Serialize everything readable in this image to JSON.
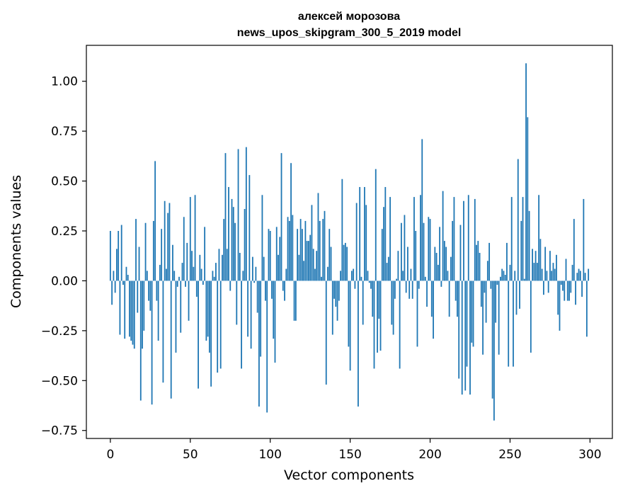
{
  "chart_data": {
    "type": "bar",
    "title": "алексей морозова",
    "subtitle": "news_upos_skipgram_300_5_2019 model",
    "xlabel": "Vector components",
    "ylabel": "Components values",
    "xlim": [
      -15,
      314
    ],
    "ylim": [
      -0.79,
      1.18
    ],
    "x_ticks": [
      0,
      50,
      100,
      150,
      200,
      250,
      300
    ],
    "y_ticks": [
      -0.75,
      -0.5,
      -0.25,
      0.0,
      0.25,
      0.5,
      0.75,
      1.0
    ],
    "y_tick_labels": [
      "−0.75",
      "−0.50",
      "−0.25",
      "0.00",
      "0.25",
      "0.50",
      "0.75",
      "1.00"
    ],
    "x_tick_labels": [
      "0",
      "50",
      "100",
      "150",
      "200",
      "250",
      "300"
    ],
    "grid": false,
    "bar_color": "#1f77b4",
    "x": [
      0,
      1,
      2,
      3,
      4,
      5,
      6,
      7,
      8,
      9,
      10,
      11,
      12,
      13,
      14,
      15,
      16,
      17,
      18,
      19,
      20,
      21,
      22,
      23,
      24,
      25,
      26,
      27,
      28,
      29,
      30,
      31,
      32,
      33,
      34,
      35,
      36,
      37,
      38,
      39,
      40,
      41,
      42,
      43,
      44,
      45,
      46,
      47,
      48,
      49,
      50,
      51,
      52,
      53,
      54,
      55,
      56,
      57,
      58,
      59,
      60,
      61,
      62,
      63,
      64,
      65,
      66,
      67,
      68,
      69,
      70,
      71,
      72,
      73,
      74,
      75,
      76,
      77,
      78,
      79,
      80,
      81,
      82,
      83,
      84,
      85,
      86,
      87,
      88,
      89,
      90,
      91,
      92,
      93,
      94,
      95,
      96,
      97,
      98,
      99,
      100,
      101,
      102,
      103,
      104,
      105,
      106,
      107,
      108,
      109,
      110,
      111,
      112,
      113,
      114,
      115,
      116,
      117,
      118,
      119,
      120,
      121,
      122,
      123,
      124,
      125,
      126,
      127,
      128,
      129,
      130,
      131,
      132,
      133,
      134,
      135,
      136,
      137,
      138,
      139,
      140,
      141,
      142,
      143,
      144,
      145,
      146,
      147,
      148,
      149,
      150,
      151,
      152,
      153,
      154,
      155,
      156,
      157,
      158,
      159,
      160,
      161,
      162,
      163,
      164,
      165,
      166,
      167,
      168,
      169,
      170,
      171,
      172,
      173,
      174,
      175,
      176,
      177,
      178,
      179,
      180,
      181,
      182,
      183,
      184,
      185,
      186,
      187,
      188,
      189,
      190,
      191,
      192,
      193,
      194,
      195,
      196,
      197,
      198,
      199,
      200,
      201,
      202,
      203,
      204,
      205,
      206,
      207,
      208,
      209,
      210,
      211,
      212,
      213,
      214,
      215,
      216,
      217,
      218,
      219,
      220,
      221,
      222,
      223,
      224,
      225,
      226,
      227,
      228,
      229,
      230,
      231,
      232,
      233,
      234,
      235,
      236,
      237,
      238,
      239,
      240,
      241,
      242,
      243,
      244,
      245,
      246,
      247,
      248,
      249,
      250,
      251,
      252,
      253,
      254,
      255,
      256,
      257,
      258,
      259,
      260,
      261,
      262,
      263,
      264,
      265,
      266,
      267,
      268,
      269,
      270,
      271,
      272,
      273,
      274,
      275,
      276,
      277,
      278,
      279,
      280,
      281,
      282,
      283,
      284,
      285,
      286,
      287,
      288,
      289,
      290,
      291,
      292,
      293,
      294,
      295,
      296,
      297,
      298,
      299
    ],
    "values": [
      0.25,
      -0.12,
      0.05,
      -0.06,
      0.16,
      0.25,
      -0.27,
      0.28,
      -0.02,
      -0.29,
      0.07,
      0.03,
      -0.28,
      -0.3,
      -0.32,
      -0.34,
      0.31,
      -0.16,
      0.17,
      -0.6,
      -0.34,
      -0.25,
      0.29,
      0.05,
      -0.1,
      -0.15,
      -0.62,
      0.3,
      0.6,
      -0.1,
      -0.3,
      0.08,
      0.26,
      -0.51,
      0.4,
      0.06,
      0.34,
      0.39,
      -0.59,
      0.18,
      0.05,
      -0.36,
      -0.03,
      0.02,
      -0.26,
      0.09,
      0.32,
      -0.03,
      0.19,
      -0.2,
      0.42,
      0.15,
      0.07,
      0.43,
      -0.08,
      -0.54,
      0.13,
      0.06,
      -0.02,
      0.27,
      -0.3,
      -0.28,
      -0.36,
      -0.53,
      0.05,
      0.02,
      0.09,
      -0.46,
      0.16,
      -0.44,
      0.13,
      0.31,
      0.64,
      0.16,
      0.47,
      -0.05,
      0.41,
      0.37,
      0.29,
      -0.22,
      0.66,
      0.14,
      -0.44,
      0.05,
      0.36,
      0.67,
      -0.28,
      0.53,
      -0.34,
      0.12,
      -0.01,
      0.07,
      -0.16,
      -0.63,
      -0.38,
      0.43,
      0.12,
      -0.1,
      -0.66,
      0.26,
      0.25,
      -0.09,
      -0.29,
      -0.41,
      0.27,
      0.13,
      0.22,
      0.64,
      -0.05,
      -0.1,
      0.06,
      0.32,
      0.3,
      0.59,
      0.33,
      -0.2,
      -0.2,
      0.26,
      0.13,
      0.31,
      0.26,
      0.1,
      0.3,
      0.2,
      0.2,
      0.23,
      0.38,
      0.16,
      0.06,
      0.15,
      0.44,
      0.3,
      0.02,
      0.31,
      0.35,
      -0.52,
      0.07,
      0.26,
      0.17,
      -0.27,
      -0.09,
      -0.13,
      -0.2,
      -0.1,
      0.05,
      0.51,
      0.18,
      0.19,
      0.17,
      -0.33,
      -0.45,
      0.05,
      0.06,
      -0.04,
      0.39,
      -0.63,
      0.47,
      0.02,
      -0.22,
      0.47,
      0.38,
      0.05,
      -0.01,
      -0.04,
      -0.18,
      -0.44,
      0.56,
      -0.36,
      -0.19,
      -0.35,
      0.26,
      0.37,
      0.47,
      0.09,
      0.12,
      0.42,
      -0.22,
      -0.27,
      -0.09,
      0.01,
      0.15,
      -0.44,
      0.29,
      0.05,
      0.33,
      -0.06,
      0.17,
      -0.09,
      0.06,
      -0.09,
      0.42,
      0.25,
      -0.33,
      -0.04,
      0.43,
      0.71,
      0.29,
      0.02,
      -0.13,
      0.32,
      0.31,
      -0.18,
      -0.29,
      0.17,
      0.14,
      0.08,
      0.27,
      -0.03,
      0.45,
      0.2,
      0.17,
      0.05,
      -0.18,
      0.12,
      0.3,
      0.42,
      -0.1,
      -0.18,
      -0.49,
      0.28,
      -0.57,
      0.4,
      -0.55,
      -0.43,
      0.43,
      -0.57,
      -0.31,
      -0.33,
      0.41,
      0.18,
      0.2,
      0.14,
      -0.13,
      -0.37,
      -0.06,
      -0.21,
      0.1,
      0.19,
      -0.04,
      -0.59,
      -0.7,
      -0.21,
      -0.02,
      -0.37,
      0.02,
      0.06,
      0.05,
      0.03,
      0.19,
      -0.43,
      0.08,
      0.42,
      -0.43,
      0.05,
      -0.17,
      0.61,
      -0.14,
      0.3,
      0.42,
      0.01,
      1.09,
      0.82,
      0.35,
      -0.36,
      0.16,
      0.09,
      0.15,
      0.09,
      0.43,
      0.21,
      0.06,
      -0.07,
      0.17,
      0.05,
      -0.06,
      0.15,
      0.05,
      0.09,
      0.06,
      0.13,
      -0.17,
      -0.25,
      -0.02,
      -0.05,
      -0.1,
      0.11,
      -0.1,
      -0.1,
      -0.06,
      0.08,
      0.31,
      -0.12,
      0.04,
      0.06,
      0.05,
      -0.08,
      0.41,
      0.04,
      -0.28,
      0.06
    ]
  }
}
